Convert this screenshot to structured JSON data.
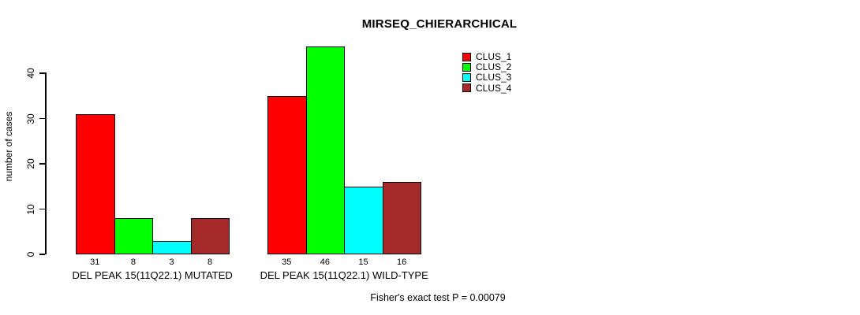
{
  "chart_data": {
    "type": "bar",
    "title": "MIRSEQ_CHIERARCHICAL",
    "xlabel": "",
    "ylabel": "number of cases",
    "ylim": [
      0,
      46
    ],
    "yticks": [
      0,
      10,
      20,
      30,
      40
    ],
    "grid": false,
    "legend_position": "top-right",
    "categories": [
      "DEL PEAK 15(11Q22.1) MUTATED",
      "DEL PEAK 15(11Q22.1) WILD-TYPE"
    ],
    "series": [
      {
        "name": "CLUS_1",
        "color": "#ff0000",
        "values": [
          31,
          35
        ]
      },
      {
        "name": "CLUS_2",
        "color": "#00ff00",
        "values": [
          8,
          46
        ]
      },
      {
        "name": "CLUS_3",
        "color": "#00ffff",
        "values": [
          3,
          15
        ]
      },
      {
        "name": "CLUS_4",
        "color": "#a52a2a",
        "values": [
          8,
          16
        ]
      }
    ],
    "bar_value_labels": [
      [
        "31",
        "8",
        "3",
        "8"
      ],
      [
        "35",
        "46",
        "15",
        "16"
      ]
    ],
    "annotation": "Fisher's exact test P = 0.00079",
    "axis_color": "#000000",
    "background_color": "#ffffff"
  }
}
